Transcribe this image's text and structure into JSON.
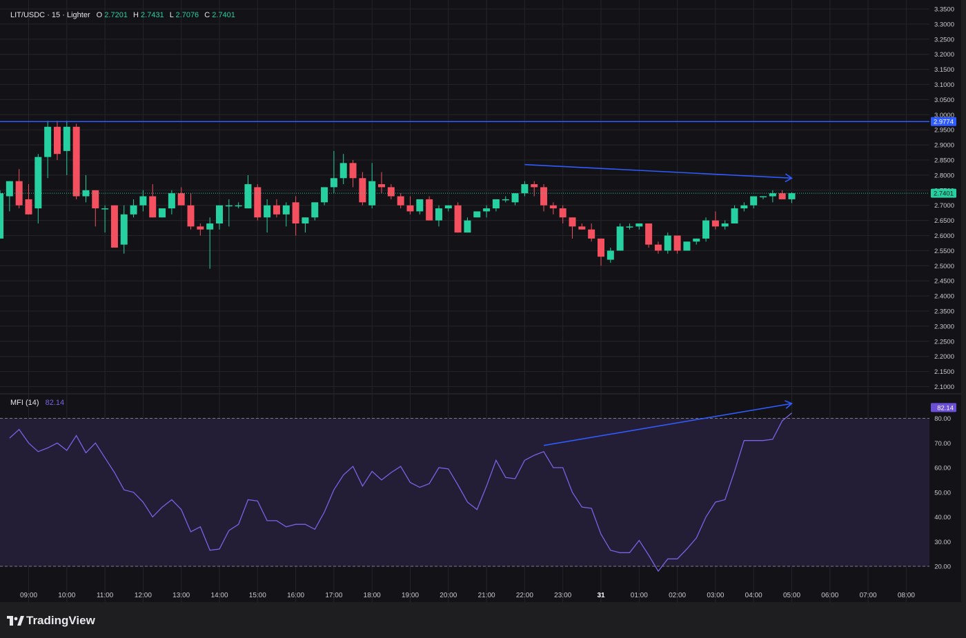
{
  "header": {
    "symbol": "LIT/USDC",
    "interval": "15",
    "exchange": "Lighter",
    "o_label": "O",
    "o_value": "2.7201",
    "h_label": "H",
    "h_value": "2.7431",
    "l_label": "L",
    "l_value": "2.7076",
    "c_label": "C",
    "c_value": "2.7401"
  },
  "indicator": {
    "name": "MFI (14)",
    "value": "82.14"
  },
  "branding": {
    "logo_text": "TradingView"
  },
  "colors": {
    "background": "#131317",
    "page": "#1e1e21",
    "up": "#26d0a0",
    "down": "#f4505f",
    "mfi_line": "#7b62e6",
    "mfi_band": "#231d35",
    "trendline": "#2f5bff",
    "grid": "#24242a",
    "axis_text": "#c9c9cf",
    "resistance_label": "#2f5bff",
    "mfi_label": "#6b4fd6"
  },
  "chart_data": [
    {
      "type": "candlestick",
      "title": "LIT/USDC · 15 · Lighter",
      "x_tick_labels": [
        "09:00",
        "10:00",
        "11:00",
        "12:00",
        "13:00",
        "14:00",
        "15:00",
        "16:00",
        "17:00",
        "18:00",
        "19:00",
        "20:00",
        "21:00",
        "22:00",
        "23:00",
        "31",
        "01:00",
        "02:00",
        "03:00",
        "04:00",
        "05:00",
        "06:00",
        "07:00",
        "08:00"
      ],
      "y_tick_labels": [
        "3.3500",
        "3.3000",
        "3.2500",
        "3.2000",
        "3.1500",
        "3.1000",
        "3.0500",
        "3.0000",
        "2.9500",
        "2.9000",
        "2.8500",
        "2.8000",
        "2.7500",
        "2.7000",
        "2.6500",
        "2.6000",
        "2.5500",
        "2.5000",
        "2.4500",
        "2.4000",
        "2.3500",
        "2.3000",
        "2.2500",
        "2.2000",
        "2.1500",
        "2.1000"
      ],
      "ylim": [
        2.08,
        3.355
      ],
      "horizontal_line": {
        "value": 2.9774,
        "label": "2.9774"
      },
      "last_price": {
        "value": 2.7401,
        "label": "2.7401"
      },
      "trendline": {
        "start": [
          "22:00",
          2.835
        ],
        "end": [
          "05:00",
          2.79
        ]
      },
      "candles": [
        {
          "o": 2.59,
          "h": 2.75,
          "l": 2.59,
          "c": 2.74
        },
        {
          "o": 2.73,
          "h": 2.78,
          "l": 2.68,
          "c": 2.78
        },
        {
          "o": 2.78,
          "h": 2.82,
          "l": 2.69,
          "c": 2.7
        },
        {
          "o": 2.72,
          "h": 2.77,
          "l": 2.67,
          "c": 2.67
        },
        {
          "o": 2.69,
          "h": 2.87,
          "l": 2.64,
          "c": 2.86
        },
        {
          "o": 2.86,
          "h": 2.98,
          "l": 2.79,
          "c": 2.96
        },
        {
          "o": 2.96,
          "h": 2.98,
          "l": 2.85,
          "c": 2.87
        },
        {
          "o": 2.88,
          "h": 2.98,
          "l": 2.8,
          "c": 2.96
        },
        {
          "o": 2.96,
          "h": 2.97,
          "l": 2.72,
          "c": 2.73
        },
        {
          "o": 2.73,
          "h": 2.8,
          "l": 2.71,
          "c": 2.75
        },
        {
          "o": 2.75,
          "h": 2.75,
          "l": 2.63,
          "c": 2.69
        },
        {
          "o": 2.69,
          "h": 2.7,
          "l": 2.61,
          "c": 2.69
        },
        {
          "o": 2.7,
          "h": 2.7,
          "l": 2.56,
          "c": 2.56
        },
        {
          "o": 2.57,
          "h": 2.7,
          "l": 2.54,
          "c": 2.67
        },
        {
          "o": 2.67,
          "h": 2.72,
          "l": 2.66,
          "c": 2.7
        },
        {
          "o": 2.7,
          "h": 2.75,
          "l": 2.68,
          "c": 2.73
        },
        {
          "o": 2.73,
          "h": 2.77,
          "l": 2.66,
          "c": 2.66
        },
        {
          "o": 2.66,
          "h": 2.69,
          "l": 2.66,
          "c": 2.69
        },
        {
          "o": 2.69,
          "h": 2.75,
          "l": 2.67,
          "c": 2.74
        },
        {
          "o": 2.74,
          "h": 2.76,
          "l": 2.7,
          "c": 2.7
        },
        {
          "o": 2.7,
          "h": 2.74,
          "l": 2.62,
          "c": 2.63
        },
        {
          "o": 2.63,
          "h": 2.64,
          "l": 2.6,
          "c": 2.62
        },
        {
          "o": 2.62,
          "h": 2.66,
          "l": 2.49,
          "c": 2.64
        },
        {
          "o": 2.64,
          "h": 2.7,
          "l": 2.62,
          "c": 2.7
        },
        {
          "o": 2.7,
          "h": 2.72,
          "l": 2.63,
          "c": 2.7
        },
        {
          "o": 2.7,
          "h": 2.71,
          "l": 2.69,
          "c": 2.7
        },
        {
          "o": 2.69,
          "h": 2.8,
          "l": 2.69,
          "c": 2.77
        },
        {
          "o": 2.76,
          "h": 2.77,
          "l": 2.65,
          "c": 2.66
        },
        {
          "o": 2.66,
          "h": 2.72,
          "l": 2.61,
          "c": 2.7
        },
        {
          "o": 2.7,
          "h": 2.72,
          "l": 2.66,
          "c": 2.67
        },
        {
          "o": 2.67,
          "h": 2.71,
          "l": 2.63,
          "c": 2.7
        },
        {
          "o": 2.71,
          "h": 2.73,
          "l": 2.6,
          "c": 2.64
        },
        {
          "o": 2.64,
          "h": 2.66,
          "l": 2.61,
          "c": 2.66
        },
        {
          "o": 2.66,
          "h": 2.7,
          "l": 2.65,
          "c": 2.71
        },
        {
          "o": 2.71,
          "h": 2.76,
          "l": 2.7,
          "c": 2.76
        },
        {
          "o": 2.76,
          "h": 2.88,
          "l": 2.74,
          "c": 2.79
        },
        {
          "o": 2.79,
          "h": 2.87,
          "l": 2.77,
          "c": 2.84
        },
        {
          "o": 2.84,
          "h": 2.85,
          "l": 2.76,
          "c": 2.79
        },
        {
          "o": 2.79,
          "h": 2.81,
          "l": 2.7,
          "c": 2.71
        },
        {
          "o": 2.7,
          "h": 2.84,
          "l": 2.69,
          "c": 2.78
        },
        {
          "o": 2.77,
          "h": 2.81,
          "l": 2.74,
          "c": 2.76
        },
        {
          "o": 2.76,
          "h": 2.77,
          "l": 2.72,
          "c": 2.73
        },
        {
          "o": 2.73,
          "h": 2.74,
          "l": 2.69,
          "c": 2.7
        },
        {
          "o": 2.7,
          "h": 2.73,
          "l": 2.67,
          "c": 2.68
        },
        {
          "o": 2.68,
          "h": 2.72,
          "l": 2.67,
          "c": 2.72
        },
        {
          "o": 2.72,
          "h": 2.73,
          "l": 2.65,
          "c": 2.65
        },
        {
          "o": 2.65,
          "h": 2.7,
          "l": 2.63,
          "c": 2.69
        },
        {
          "o": 2.69,
          "h": 2.7,
          "l": 2.68,
          "c": 2.7
        },
        {
          "o": 2.7,
          "h": 2.71,
          "l": 2.61,
          "c": 2.61
        },
        {
          "o": 2.61,
          "h": 2.66,
          "l": 2.61,
          "c": 2.65
        },
        {
          "o": 2.66,
          "h": 2.68,
          "l": 2.66,
          "c": 2.68
        },
        {
          "o": 2.68,
          "h": 2.7,
          "l": 2.66,
          "c": 2.69
        },
        {
          "o": 2.69,
          "h": 2.72,
          "l": 2.68,
          "c": 2.72
        },
        {
          "o": 2.72,
          "h": 2.73,
          "l": 2.71,
          "c": 2.72
        },
        {
          "o": 2.71,
          "h": 2.74,
          "l": 2.7,
          "c": 2.74
        },
        {
          "o": 2.74,
          "h": 2.78,
          "l": 2.73,
          "c": 2.77
        },
        {
          "o": 2.77,
          "h": 2.78,
          "l": 2.73,
          "c": 2.76
        },
        {
          "o": 2.76,
          "h": 2.77,
          "l": 2.68,
          "c": 2.7
        },
        {
          "o": 2.7,
          "h": 2.71,
          "l": 2.67,
          "c": 2.69
        },
        {
          "o": 2.69,
          "h": 2.7,
          "l": 2.64,
          "c": 2.66
        },
        {
          "o": 2.66,
          "h": 2.66,
          "l": 2.59,
          "c": 2.63
        },
        {
          "o": 2.63,
          "h": 2.64,
          "l": 2.62,
          "c": 2.62
        },
        {
          "o": 2.62,
          "h": 2.64,
          "l": 2.58,
          "c": 2.59
        },
        {
          "o": 2.59,
          "h": 2.59,
          "l": 2.5,
          "c": 2.53
        },
        {
          "o": 2.52,
          "h": 2.56,
          "l": 2.51,
          "c": 2.55
        },
        {
          "o": 2.55,
          "h": 2.64,
          "l": 2.55,
          "c": 2.63
        },
        {
          "o": 2.63,
          "h": 2.64,
          "l": 2.62,
          "c": 2.63
        },
        {
          "o": 2.63,
          "h": 2.64,
          "l": 2.62,
          "c": 2.64
        },
        {
          "o": 2.64,
          "h": 2.64,
          "l": 2.56,
          "c": 2.57
        },
        {
          "o": 2.57,
          "h": 2.58,
          "l": 2.54,
          "c": 2.55
        },
        {
          "o": 2.55,
          "h": 2.61,
          "l": 2.54,
          "c": 2.6
        },
        {
          "o": 2.6,
          "h": 2.6,
          "l": 2.54,
          "c": 2.55
        },
        {
          "o": 2.55,
          "h": 2.58,
          "l": 2.55,
          "c": 2.58
        },
        {
          "o": 2.58,
          "h": 2.59,
          "l": 2.57,
          "c": 2.59
        },
        {
          "o": 2.59,
          "h": 2.66,
          "l": 2.58,
          "c": 2.65
        },
        {
          "o": 2.65,
          "h": 2.68,
          "l": 2.62,
          "c": 2.63
        },
        {
          "o": 2.63,
          "h": 2.65,
          "l": 2.62,
          "c": 2.64
        },
        {
          "o": 2.64,
          "h": 2.7,
          "l": 2.64,
          "c": 2.69
        },
        {
          "o": 2.69,
          "h": 2.71,
          "l": 2.68,
          "c": 2.7
        },
        {
          "o": 2.7,
          "h": 2.73,
          "l": 2.69,
          "c": 2.73
        },
        {
          "o": 2.73,
          "h": 2.73,
          "l": 2.72,
          "c": 2.73
        },
        {
          "o": 2.73,
          "h": 2.75,
          "l": 2.71,
          "c": 2.74
        },
        {
          "o": 2.74,
          "h": 2.75,
          "l": 2.72,
          "c": 2.72
        },
        {
          "o": 2.7201,
          "h": 2.7431,
          "l": 2.7076,
          "c": 2.7401
        }
      ]
    },
    {
      "type": "line",
      "title": "MFI (14)",
      "y_tick_labels": [
        "80.00",
        "70.00",
        "60.00",
        "50.00",
        "40.00",
        "30.00",
        "20.00"
      ],
      "ylim": [
        14,
        85
      ],
      "bands": [
        20,
        80
      ],
      "last_value": {
        "value": 82.14,
        "label": "82.14"
      },
      "trendline": {
        "start": [
          "22:30",
          69
        ],
        "end": [
          "05:00",
          86
        ]
      },
      "series": [
        {
          "values": [
            72,
            75.5,
            70,
            66.5,
            68,
            70,
            67,
            73,
            66,
            70,
            64,
            58,
            51,
            50,
            46,
            40,
            44,
            47,
            43,
            34,
            36,
            26.5,
            27,
            34.5,
            37,
            47,
            46.5,
            38.5,
            38.5,
            36,
            37,
            37,
            35,
            42,
            51,
            57,
            60.5,
            52.5,
            58.5,
            55,
            58,
            60.5,
            54,
            52,
            53.5,
            60,
            59.5,
            53,
            46,
            43,
            52.5,
            63,
            56,
            55.5,
            63,
            65,
            66.5,
            60,
            60,
            50,
            44,
            43.5,
            33,
            26.5,
            25.5,
            25.5,
            30.5,
            24.5,
            18,
            23,
            23,
            27,
            31.5,
            40,
            46,
            47,
            58.5,
            71,
            71,
            71,
            71.5,
            79,
            82.14
          ]
        }
      ]
    }
  ]
}
